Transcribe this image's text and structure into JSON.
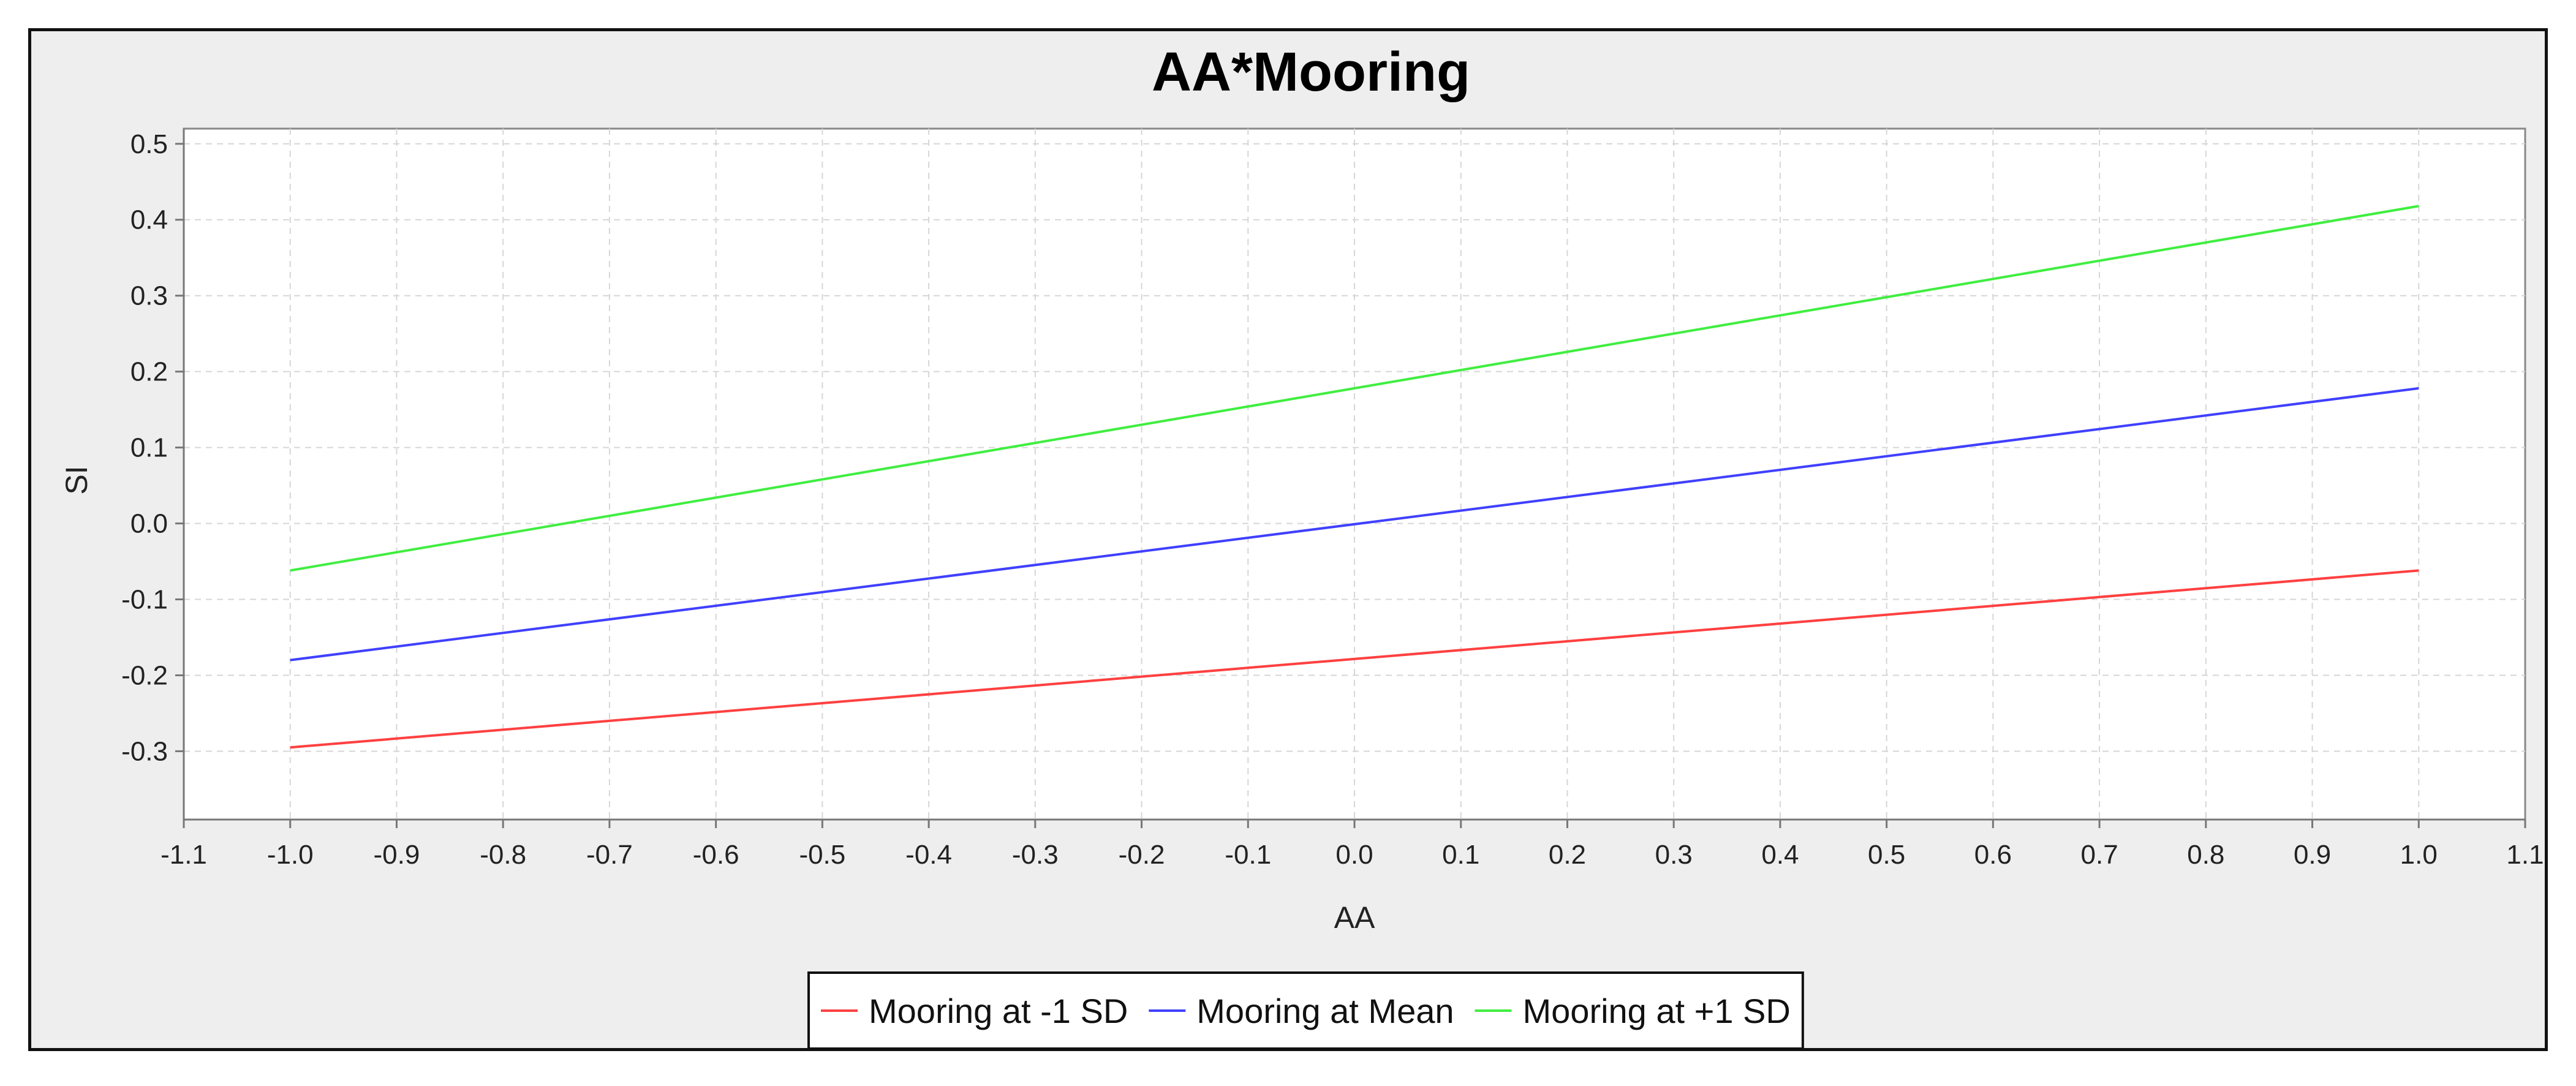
{
  "chart_data": {
    "type": "line",
    "title": "AA*Mooring",
    "xlabel": "AA",
    "ylabel": "SI",
    "xlim": [
      -1.1,
      1.1
    ],
    "ylim": [
      -0.39,
      0.52
    ],
    "x_ticks": [
      "-1.1",
      "-1.0",
      "-0.9",
      "-0.8",
      "-0.7",
      "-0.6",
      "-0.5",
      "-0.4",
      "-0.3",
      "-0.2",
      "-0.1",
      "0.0",
      "0.1",
      "0.2",
      "0.3",
      "0.4",
      "0.5",
      "0.6",
      "0.7",
      "0.8",
      "0.9",
      "1.0",
      "1.1"
    ],
    "y_ticks": [
      "0.5",
      "0.4",
      "0.3",
      "0.2",
      "0.1",
      "0.0",
      "-0.1",
      "-0.2",
      "-0.3"
    ],
    "grid": true,
    "legend_position": "bottom",
    "series": [
      {
        "name": "Mooring at -1 SD",
        "color": "#ff4040",
        "x": [
          -1.0,
          1.0
        ],
        "y": [
          -0.295,
          -0.062
        ]
      },
      {
        "name": "Mooring at Mean",
        "color": "#4040ff",
        "x": [
          -1.0,
          1.0
        ],
        "y": [
          -0.18,
          0.178
        ]
      },
      {
        "name": "Mooring at +1 SD",
        "color": "#40ee40",
        "x": [
          -1.0,
          1.0
        ],
        "y": [
          -0.062,
          0.418
        ]
      }
    ]
  }
}
